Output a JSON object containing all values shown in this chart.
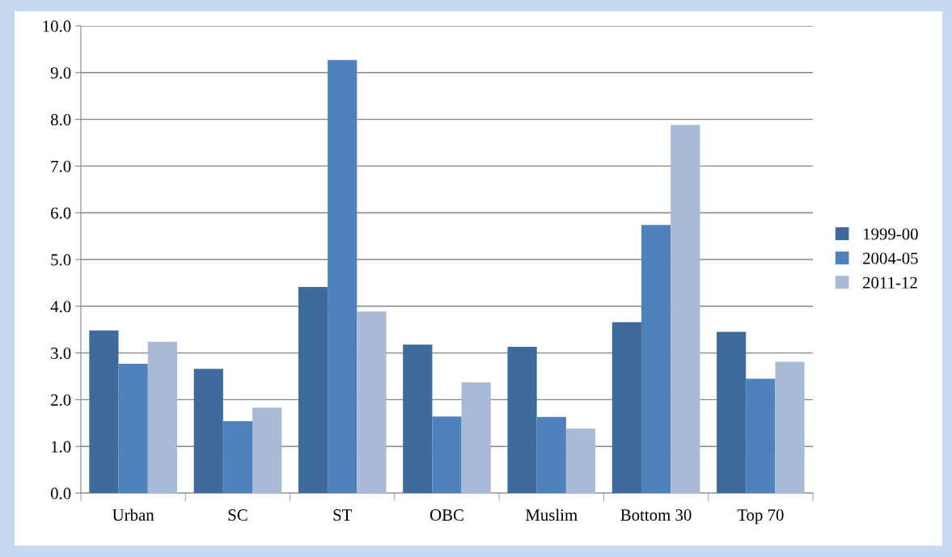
{
  "chart_data": {
    "type": "bar",
    "categories": [
      "Urban",
      "SC",
      "ST",
      "OBC",
      "Muslim",
      "Bottom 30",
      "Top 70"
    ],
    "series": [
      {
        "name": "1999-00",
        "color": "#3e6a9c",
        "values": [
          3.48,
          2.66,
          4.41,
          3.18,
          3.13,
          3.66,
          3.45
        ]
      },
      {
        "name": "2004-05",
        "color": "#4f81bd",
        "values": [
          2.77,
          1.54,
          9.27,
          1.64,
          1.63,
          5.74,
          2.45
        ]
      },
      {
        "name": "2011-12",
        "color": "#a9b9d8",
        "values": [
          3.24,
          1.83,
          3.89,
          2.37,
          1.38,
          7.88,
          2.81
        ]
      }
    ],
    "ylim": [
      0,
      10
    ],
    "yticks": [
      {
        "value": 0,
        "label": "0.0"
      },
      {
        "value": 1,
        "label": "1.0"
      },
      {
        "value": 2,
        "label": "2.0"
      },
      {
        "value": 3,
        "label": "3.0"
      },
      {
        "value": 4,
        "label": "4.0"
      },
      {
        "value": 5,
        "label": "5.0"
      },
      {
        "value": 6,
        "label": "6.0"
      },
      {
        "value": 7,
        "label": "7.0"
      },
      {
        "value": 8,
        "label": "8.0"
      },
      {
        "value": 9,
        "label": "9.0"
      },
      {
        "value": 10,
        "label": "10.0"
      }
    ],
    "grid": "y",
    "legend": "right"
  }
}
